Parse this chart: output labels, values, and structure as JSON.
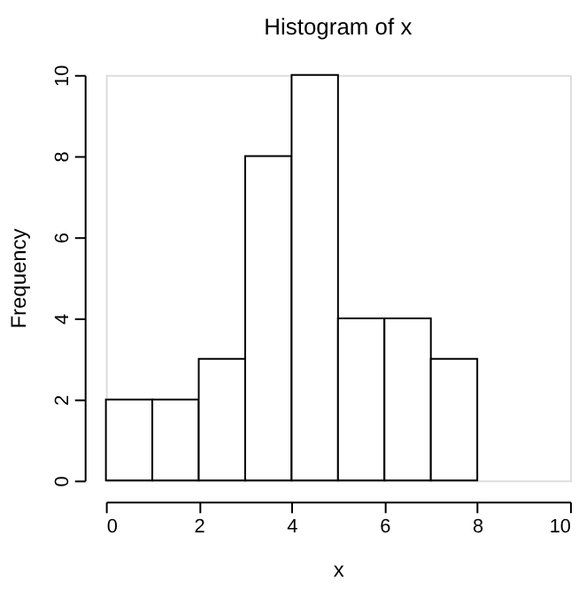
{
  "chart_data": {
    "type": "histogram",
    "title": "Histogram of x",
    "xlabel": "x",
    "ylabel": "Frequency",
    "bins": [
      0,
      1,
      2,
      3,
      4,
      5,
      6,
      7,
      8
    ],
    "values": [
      2,
      2,
      3,
      8,
      10,
      4,
      4,
      3
    ],
    "color": "#ffffff",
    "xlim": [
      0,
      10
    ],
    "ylim": [
      0,
      10
    ],
    "xticks": [
      0,
      2,
      4,
      6,
      8,
      10
    ],
    "yticks": [
      0,
      2,
      4,
      6,
      8,
      10
    ]
  }
}
